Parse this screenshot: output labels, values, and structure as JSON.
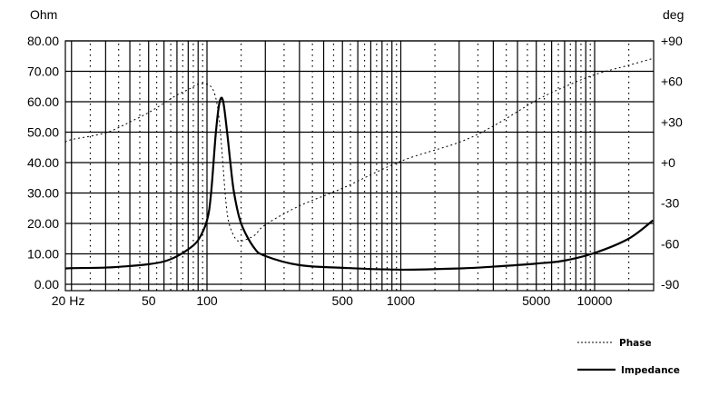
{
  "chart_data": {
    "type": "line",
    "title": "",
    "left_axis": {
      "label": "Ohm",
      "range": [
        0,
        80
      ],
      "ticks": [
        "0.00",
        "10.00",
        "20.00",
        "30.00",
        "40.00",
        "50.00",
        "60.00",
        "70.00",
        "80.00"
      ]
    },
    "right_axis": {
      "label": "deg",
      "range": [
        -90,
        90
      ],
      "ticks": [
        "-90",
        "-60",
        "-30",
        "+0",
        "+30",
        "+60",
        "+90"
      ]
    },
    "x_axis": {
      "scale": "log",
      "range": [
        18.5,
        20000
      ],
      "tick_labels": [
        {
          "f": 20,
          "label": "20 Hz"
        },
        {
          "f": 50,
          "label": "50"
        },
        {
          "f": 100,
          "label": "100"
        },
        {
          "f": 500,
          "label": "500"
        },
        {
          "f": 1000,
          "label": "1000"
        },
        {
          "f": 5000,
          "label": "5000"
        },
        {
          "f": 10000,
          "label": "10000"
        }
      ]
    },
    "grid": true,
    "legend_placement": "bottom-right",
    "series": [
      {
        "name": "Phase",
        "axis": "right",
        "style": "dotted",
        "x": [
          18.5,
          20,
          30,
          40,
          50,
          60,
          70,
          80,
          90,
          100,
          105,
          110,
          115,
          120,
          125,
          130,
          140,
          150,
          175,
          200,
          300,
          500,
          1000,
          2000,
          3000,
          5000,
          7000,
          10000,
          15000,
          20000
        ],
        "y": [
          15,
          17,
          22,
          30,
          37,
          44,
          50,
          54,
          58,
          58,
          56,
          50,
          35,
          5,
          -28,
          -45,
          -56,
          -58,
          -54,
          -46,
          -32,
          -19,
          1,
          15,
          27,
          46,
          56,
          65,
          72,
          77
        ]
      },
      {
        "name": "Impedance",
        "axis": "left",
        "style": "solid",
        "x": [
          18.5,
          20,
          30,
          40,
          50,
          60,
          70,
          80,
          90,
          100,
          105,
          111,
          116,
          121,
          127,
          132,
          138,
          150,
          175,
          200,
          300,
          500,
          1000,
          2000,
          3000,
          5000,
          7000,
          10000,
          15000,
          20000
        ],
        "y": [
          5.2,
          5.3,
          5.5,
          6.0,
          6.6,
          7.5,
          9.2,
          11.5,
          14.5,
          21,
          30,
          49.5,
          59.7,
          60.3,
          50,
          40,
          30,
          20,
          12,
          9.3,
          6.3,
          5.4,
          4.8,
          5.2,
          5.8,
          6.8,
          7.8,
          10.3,
          15,
          21
        ]
      }
    ]
  },
  "legend": {
    "phase_label": "Phase",
    "impedance_label": "Impedance"
  }
}
